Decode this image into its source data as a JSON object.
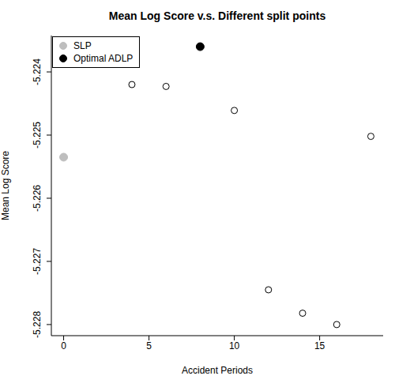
{
  "chart_data": {
    "type": "scatter",
    "title": "Mean Log Score v.s. Different split points",
    "x_label": "Accident Periods",
    "y_label": "Mean Log Score",
    "xlim": [
      -0.72,
      18.72
    ],
    "xticks": [
      0,
      5,
      10,
      15
    ],
    "ylim": [
      -5.228176,
      -5.223424
    ],
    "yticks": [
      -5.228,
      -5.227,
      -5.226,
      -5.225,
      -5.224
    ],
    "legend": "top-left",
    "grid": false,
    "series": [
      {
        "name": "SLP",
        "color": "#bebebe",
        "marker": "filled",
        "x": [
          0
        ],
        "values": [
          -5.22535
        ]
      },
      {
        "name": "Optimal ADLP",
        "color": "#000000",
        "marker": "filled",
        "x": [
          8
        ],
        "values": [
          -5.2236
        ]
      },
      {
        "color": "#000000",
        "marker": "open",
        "x": [
          4,
          6,
          10,
          12,
          14,
          16,
          18
        ],
        "values": [
          -5.2242,
          -5.22423,
          -5.22461,
          -5.22745,
          -5.22782,
          -5.228,
          -5.22502
        ]
      }
    ]
  }
}
